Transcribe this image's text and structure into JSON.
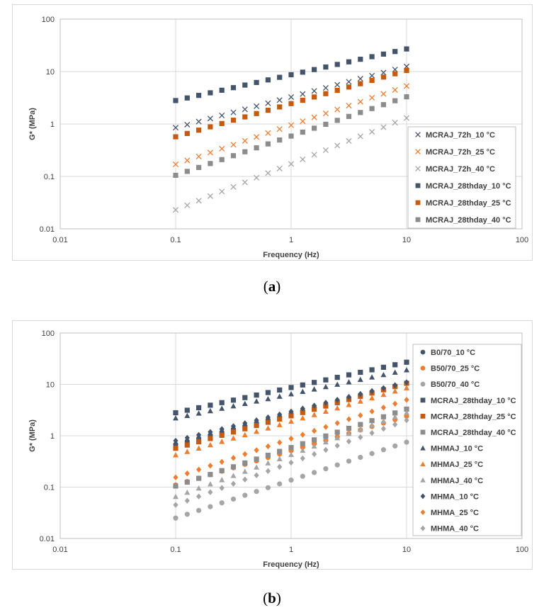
{
  "captions": {
    "a_label": "a",
    "b_label": "b"
  },
  "chart_data": [
    {
      "type": "scatter",
      "panel": "a",
      "title": "",
      "xlabel": "Frequency (Hz)",
      "ylabel": "G* (MPa)",
      "xscale": "log",
      "yscale": "log",
      "xlim": [
        0.01,
        100
      ],
      "ylim": [
        0.01,
        100
      ],
      "xticks": [
        "0.01",
        "0.1",
        "1",
        "10",
        "100"
      ],
      "yticks": [
        "0.01",
        "0.1",
        "1",
        "10",
        "100"
      ],
      "grid": true,
      "legend_position": "right",
      "x": [
        0.1,
        0.1259,
        0.1585,
        0.1995,
        0.2512,
        0.3162,
        0.3981,
        0.5012,
        0.631,
        0.7943,
        1.0,
        1.259,
        1.585,
        1.995,
        2.512,
        3.162,
        3.981,
        5.012,
        6.31,
        7.943,
        10.0
      ],
      "series": [
        {
          "name": "MCRAJ_72h_10 °C",
          "marker": "x",
          "color": "#44546a",
          "start": 0.85,
          "end": 12.5
        },
        {
          "name": "MCRAJ_72h_25 °C",
          "marker": "x",
          "color": "#ed7d31",
          "start": 0.17,
          "end": 5.3
        },
        {
          "name": "MCRAJ_72h_40 °C",
          "marker": "x",
          "color": "#a5a5a5",
          "start": 0.023,
          "end": 1.3
        },
        {
          "name": "MCRAJ_28thday_10 °C",
          "marker": "square",
          "color": "#44546a",
          "start": 2.8,
          "end": 27
        },
        {
          "name": "MCRAJ_28thday_25 °C",
          "marker": "square",
          "color": "#c55a11",
          "start": 0.57,
          "end": 10.5
        },
        {
          "name": "MCRAJ_28thday_40 °C",
          "marker": "square",
          "color": "#8c8c8c",
          "start": 0.105,
          "end": 3.3
        }
      ]
    },
    {
      "type": "scatter",
      "panel": "b",
      "title": "",
      "xlabel": "Frequency (Hz)",
      "ylabel": "G* (MPa)",
      "xscale": "log",
      "yscale": "log",
      "xlim": [
        0.01,
        100
      ],
      "ylim": [
        0.01,
        100
      ],
      "xticks": [
        "0.01",
        "0.1",
        "1",
        "10",
        "100"
      ],
      "yticks": [
        "0.01",
        "0.1",
        "1",
        "10",
        "100"
      ],
      "grid": true,
      "legend_position": "right",
      "x": [
        0.1,
        0.1259,
        0.1585,
        0.1995,
        0.2512,
        0.3162,
        0.3981,
        0.5012,
        0.631,
        0.7943,
        1.0,
        1.259,
        1.585,
        1.995,
        2.512,
        3.162,
        3.981,
        5.012,
        6.31,
        7.943,
        10.0
      ],
      "series": [
        {
          "name": "B0/70_10 °C",
          "marker": "circle",
          "color": "#44546a",
          "start": 0.68,
          "end": 10.5
        },
        {
          "name": "B50/70_25 °C",
          "marker": "circle",
          "color": "#ed7d31",
          "start": 0.11,
          "end": 2.4
        },
        {
          "name": "B50/70_40 °C",
          "marker": "circle",
          "color": "#a5a5a5",
          "start": 0.025,
          "end": 0.75
        },
        {
          "name": "MCRAJ_28thday_10 °C",
          "marker": "square",
          "color": "#44546a",
          "start": 2.8,
          "end": 27
        },
        {
          "name": "MCRAJ_28thday_25 °C",
          "marker": "square",
          "color": "#c55a11",
          "start": 0.57,
          "end": 10.5
        },
        {
          "name": "MCRAJ_28thday_40 °C",
          "marker": "square",
          "color": "#8c8c8c",
          "start": 0.105,
          "end": 3.3
        },
        {
          "name": "MHMAJ_10 °C",
          "marker": "triangle",
          "color": "#44546a",
          "start": 2.2,
          "end": 19
        },
        {
          "name": "MHMAJ_25 °C",
          "marker": "triangle",
          "color": "#ed7d31",
          "start": 0.42,
          "end": 8.5
        },
        {
          "name": "MHMAJ_40 °C",
          "marker": "triangle",
          "color": "#a5a5a5",
          "start": 0.065,
          "end": 2.8
        },
        {
          "name": "MHMA_10 °C",
          "marker": "diamond",
          "color": "#44546a",
          "start": 0.8,
          "end": 11
        },
        {
          "name": "MHMA_25 °C",
          "marker": "diamond",
          "color": "#ed7d31",
          "start": 0.155,
          "end": 5.0
        },
        {
          "name": "MHMA_40 °C",
          "marker": "diamond",
          "color": "#a5a5a5",
          "start": 0.045,
          "end": 2.0
        }
      ]
    }
  ]
}
